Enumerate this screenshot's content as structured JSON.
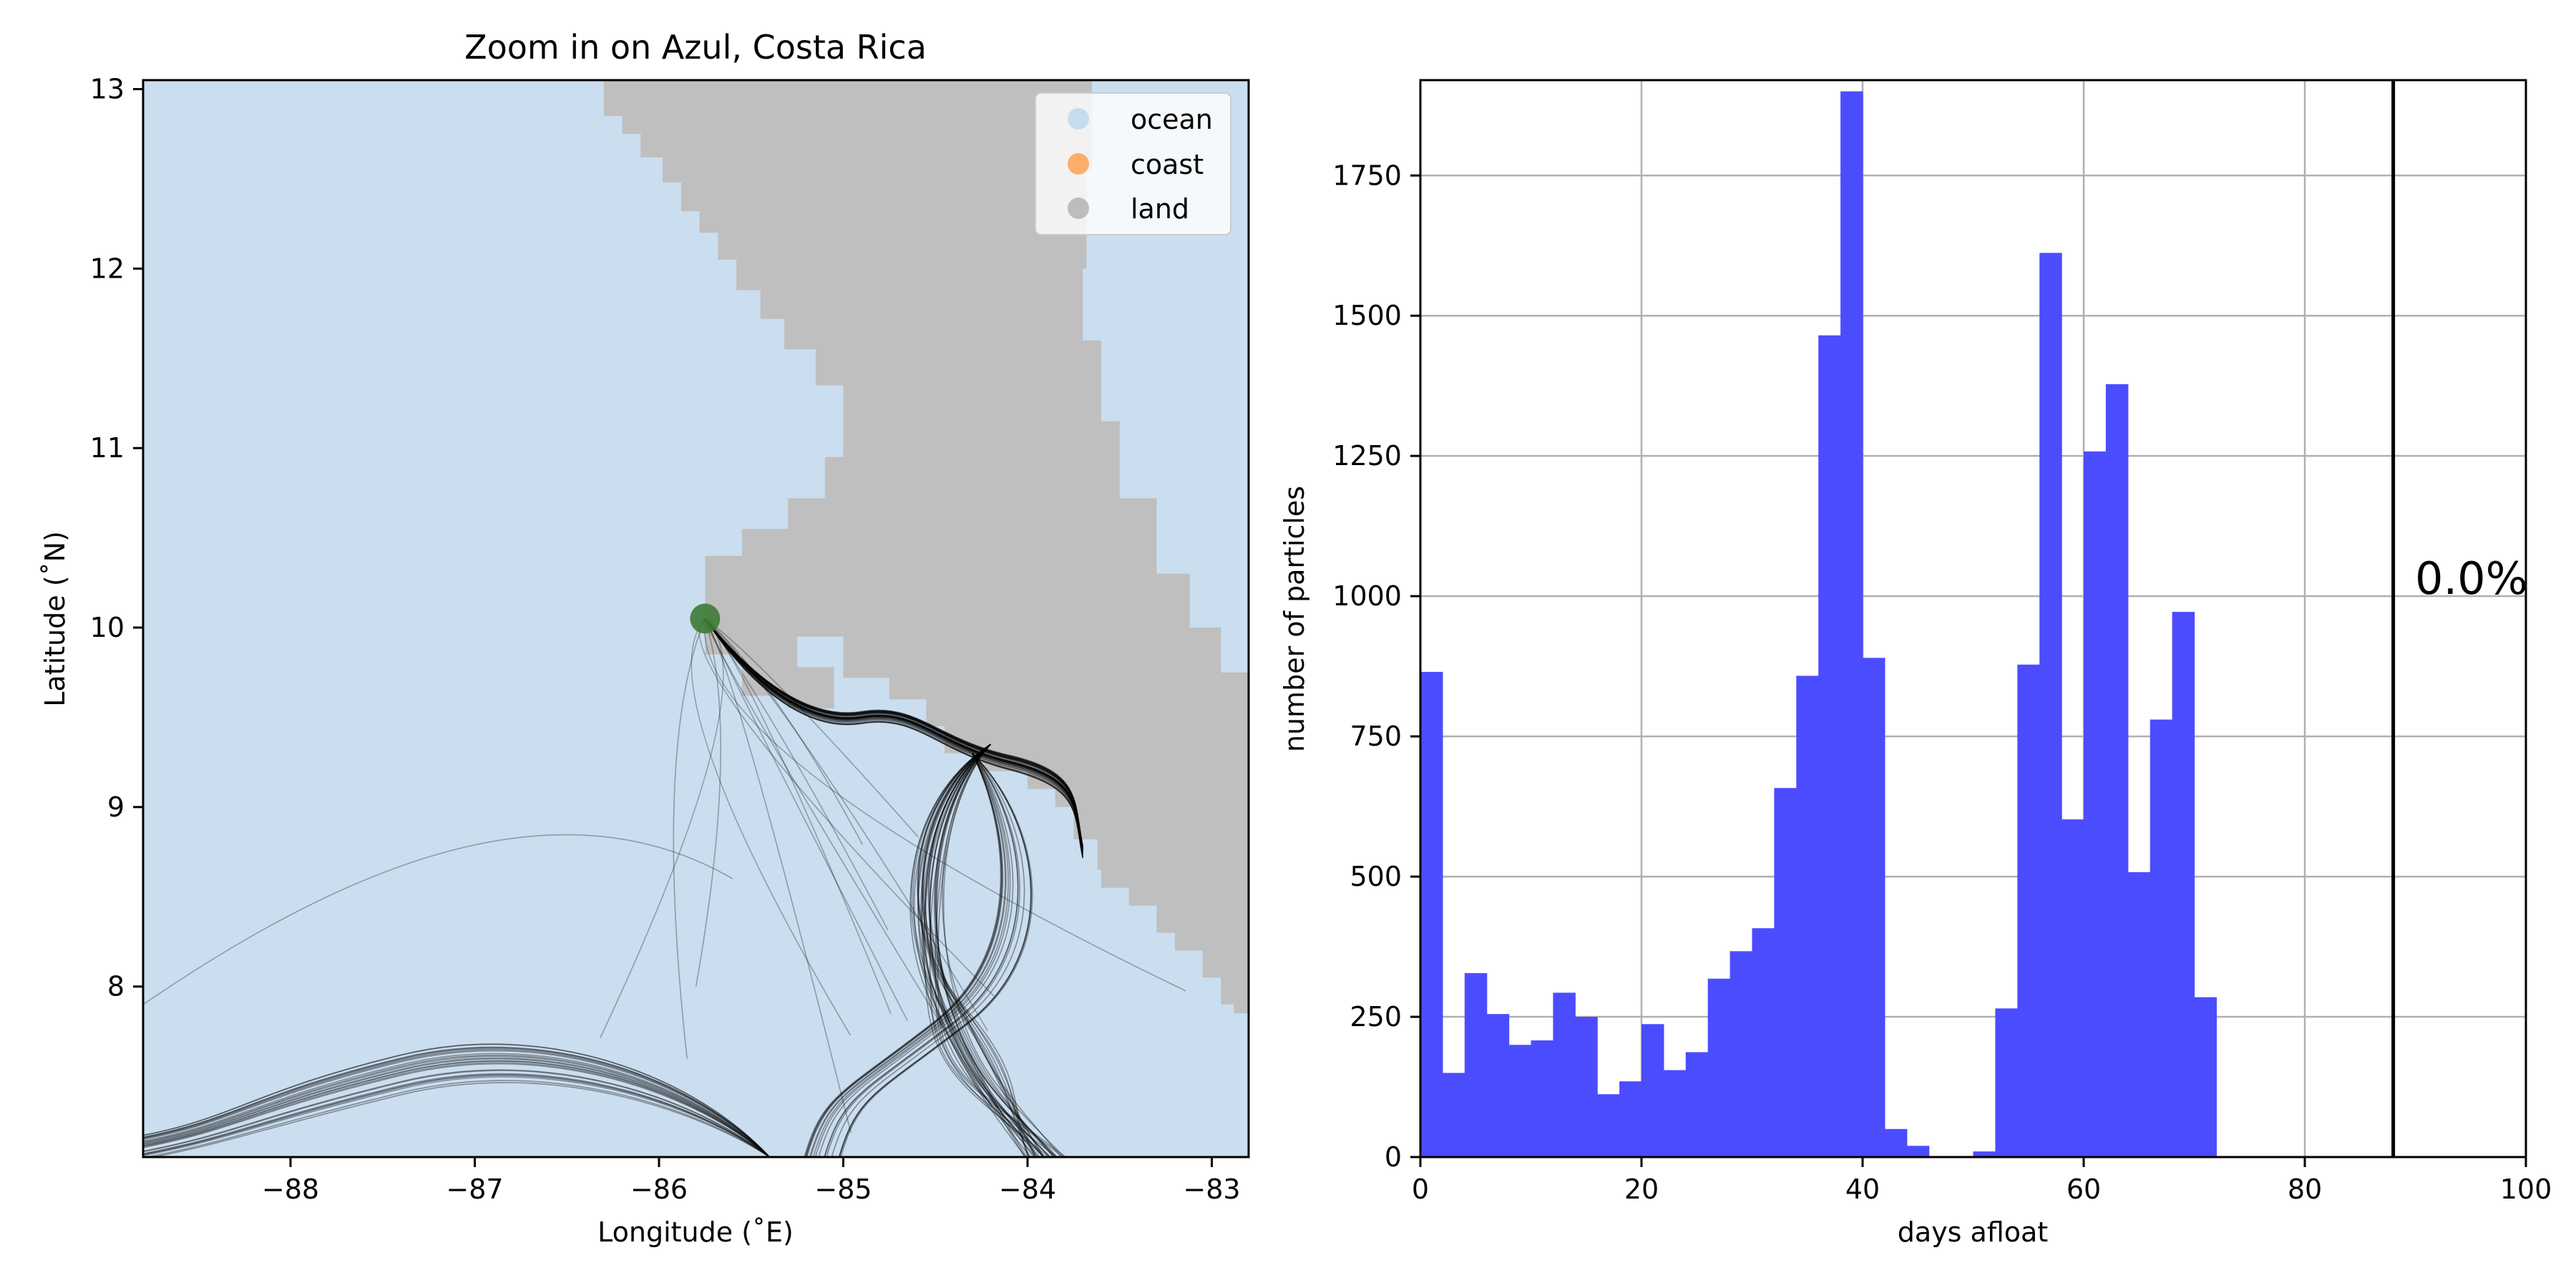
{
  "chart_data": [
    {
      "type": "map",
      "title": "Zoom in on Azul, Costa Rica",
      "xlabel": "Longitude (˚E)",
      "ylabel": "Latitude (˚N)",
      "xlim": [
        -88.8,
        -82.8
      ],
      "ylim": [
        7.05,
        13.05
      ],
      "xticks": [
        -88,
        -87,
        -86,
        -85,
        -84,
        -83
      ],
      "yticks": [
        8,
        9,
        10,
        11,
        12,
        13
      ],
      "legend": {
        "placement": "top-right",
        "entries": [
          {
            "label": "ocean",
            "color": "#c6dbef"
          },
          {
            "label": "coast",
            "color": "#fdae6b"
          },
          {
            "label": "land",
            "color": "#bdbdbd"
          }
        ]
      },
      "colors": {
        "ocean": "#cadeef",
        "land": "#bfbfbf",
        "release_point": "#3e7a34",
        "trajectory": "#000000"
      },
      "release_point": {
        "lon": -85.75,
        "lat": 10.05
      },
      "land_outline": [
        [
          -86.3,
          13.05
        ],
        [
          -86.3,
          12.9
        ],
        [
          -86.2,
          12.85
        ],
        [
          -86.1,
          12.75
        ],
        [
          -85.98,
          12.62
        ],
        [
          -85.88,
          12.48
        ],
        [
          -85.78,
          12.32
        ],
        [
          -85.68,
          12.2
        ],
        [
          -85.58,
          12.05
        ],
        [
          -85.45,
          11.88
        ],
        [
          -85.32,
          11.72
        ],
        [
          -85.15,
          11.55
        ],
        [
          -85.0,
          11.35
        ],
        [
          -85.0,
          11.15
        ],
        [
          -85.1,
          10.95
        ],
        [
          -85.3,
          10.72
        ],
        [
          -85.55,
          10.55
        ],
        [
          -85.75,
          10.4
        ],
        [
          -85.75,
          10.1
        ],
        [
          -85.55,
          9.85
        ],
        [
          -85.3,
          9.62
        ],
        [
          -85.05,
          9.55
        ],
        [
          -85.25,
          9.78
        ],
        [
          -85.25,
          10.0
        ],
        [
          -85.0,
          9.95
        ],
        [
          -84.75,
          9.72
        ],
        [
          -84.55,
          9.6
        ],
        [
          -84.45,
          9.45
        ],
        [
          -84.25,
          9.3
        ],
        [
          -84.0,
          9.2
        ],
        [
          -83.85,
          9.1
        ],
        [
          -83.75,
          9.0
        ],
        [
          -83.62,
          8.82
        ],
        [
          -83.6,
          8.65
        ],
        [
          -83.45,
          8.55
        ],
        [
          -83.3,
          8.45
        ],
        [
          -83.2,
          8.3
        ],
        [
          -83.05,
          8.2
        ],
        [
          -82.95,
          8.05
        ],
        [
          -82.88,
          7.9
        ],
        [
          -82.8,
          7.85
        ],
        [
          -82.8,
          9.6
        ],
        [
          -82.95,
          9.75
        ],
        [
          -83.12,
          10.0
        ],
        [
          -83.3,
          10.3
        ],
        [
          -83.5,
          10.72
        ],
        [
          -83.6,
          11.15
        ],
        [
          -83.7,
          11.6
        ],
        [
          -83.68,
          12.0
        ],
        [
          -83.65,
          12.55
        ],
        [
          -83.55,
          13.05
        ]
      ]
    },
    {
      "type": "bar",
      "xlabel": "days afloat",
      "ylabel": "number of particles",
      "xlim": [
        0,
        100
      ],
      "ylim": [
        0,
        1920
      ],
      "xticks": [
        0,
        20,
        40,
        60,
        80,
        100
      ],
      "yticks": [
        0,
        250,
        500,
        750,
        1000,
        1250,
        1500,
        1750
      ],
      "grid": true,
      "bar_color": "#4c4cff",
      "bin_width": 2,
      "bin_starts": [
        0,
        2,
        4,
        6,
        8,
        10,
        12,
        14,
        16,
        18,
        20,
        22,
        24,
        26,
        28,
        30,
        32,
        34,
        36,
        38,
        40,
        42,
        44,
        46,
        48,
        50,
        52,
        54,
        56,
        58,
        60,
        62,
        64,
        66,
        68,
        70
      ],
      "values": [
        865,
        150,
        328,
        255,
        200,
        208,
        293,
        250,
        112,
        135,
        237,
        155,
        187,
        318,
        367,
        408,
        658,
        858,
        1465,
        1900,
        890,
        50,
        20,
        0,
        0,
        10,
        265,
        878,
        1612,
        602,
        1258,
        1378,
        508,
        780,
        972,
        285
      ],
      "vline": {
        "x": 88,
        "color": "#000000"
      },
      "annotation": "0.0%"
    }
  ]
}
